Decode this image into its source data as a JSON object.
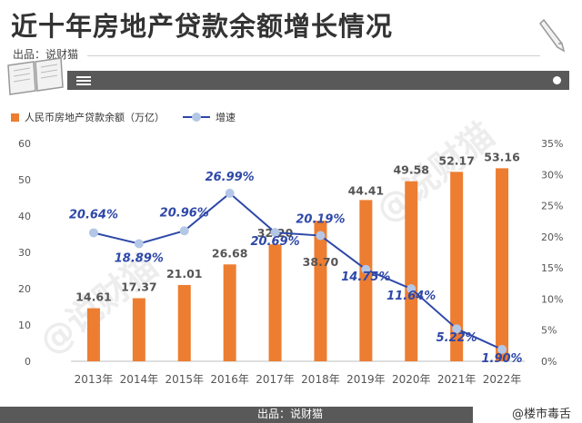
{
  "header": {
    "title": "近十年房地产贷款余额增长情况",
    "source": "出品：说财猫"
  },
  "footer": {
    "source": "出品：说财猫",
    "corner_label": "@楼市毒舌"
  },
  "watermark": "@说财猫",
  "colors": {
    "bar": "#ED7D31",
    "line": "#2E48A8",
    "marker": "#B4C7E7"
  },
  "chart_data": {
    "type": "bar",
    "categories": [
      "2013年",
      "2014年",
      "2015年",
      "2016年",
      "2017年",
      "2018年",
      "2019年",
      "2020年",
      "2021年",
      "2022年"
    ],
    "series": [
      {
        "name": "人民币房地产贷款余额（万亿）",
        "type": "bar",
        "axis": "left",
        "values": [
          14.61,
          17.37,
          21.01,
          26.68,
          32.2,
          38.7,
          44.41,
          49.58,
          52.17,
          53.16
        ],
        "labels": [
          "14.61",
          "17.37",
          "21.01",
          "26.68",
          "32.20",
          "38.70",
          "44.41",
          "49.58",
          "52.17",
          "53.16"
        ]
      },
      {
        "name": "增速",
        "type": "line",
        "axis": "right",
        "values": [
          20.64,
          18.89,
          20.96,
          26.99,
          20.69,
          20.19,
          14.75,
          11.64,
          5.22,
          1.9
        ],
        "labels": [
          "20.64%",
          "18.89%",
          "20.96%",
          "26.99%",
          "20.69%",
          "20.19%",
          "14.75%",
          "11.64%",
          "5.22%",
          "1.90%"
        ]
      }
    ],
    "y_left": {
      "ticks": [
        "0",
        "10",
        "20",
        "30",
        "40",
        "50",
        "60"
      ],
      "lim": [
        0,
        60
      ]
    },
    "y_right": {
      "ticks": [
        "0%",
        "5%",
        "10%",
        "15%",
        "20%",
        "25%",
        "30%",
        "35%"
      ],
      "lim": [
        0,
        35
      ]
    },
    "legend_position": "top-left",
    "grid": false
  }
}
